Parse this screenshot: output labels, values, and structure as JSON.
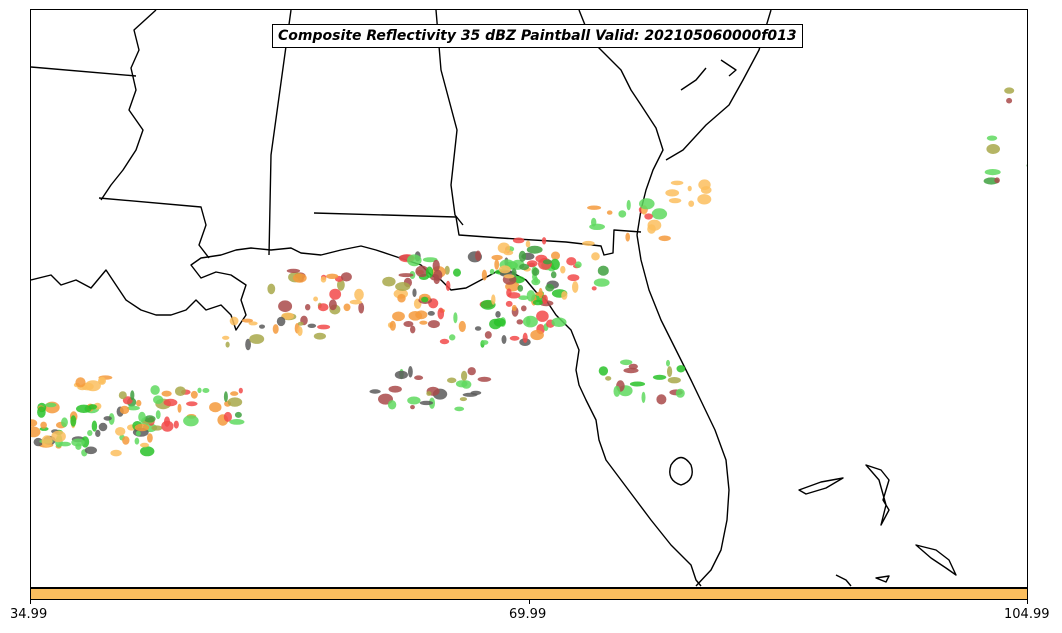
{
  "map": {
    "title": "Composite Reflectivity 35 dBZ Paintball Valid: 202105060000f013",
    "background": "#ffffff",
    "border_color": "#000000",
    "colors": {
      "orange": "#f59a3c",
      "light_orange": "#fbbe5e",
      "red": "#f24a4a",
      "dark_red": "#a94a4a",
      "green": "#5fd95f",
      "dark_green": "#3fa03f",
      "olive": "#a8a84a",
      "gray": "#5a5a5a",
      "bright_green": "#29c229"
    }
  },
  "colorbar": {
    "color": "#fbbe5e",
    "ticks": [
      "34.99",
      "69.99",
      "104.99"
    ]
  }
}
